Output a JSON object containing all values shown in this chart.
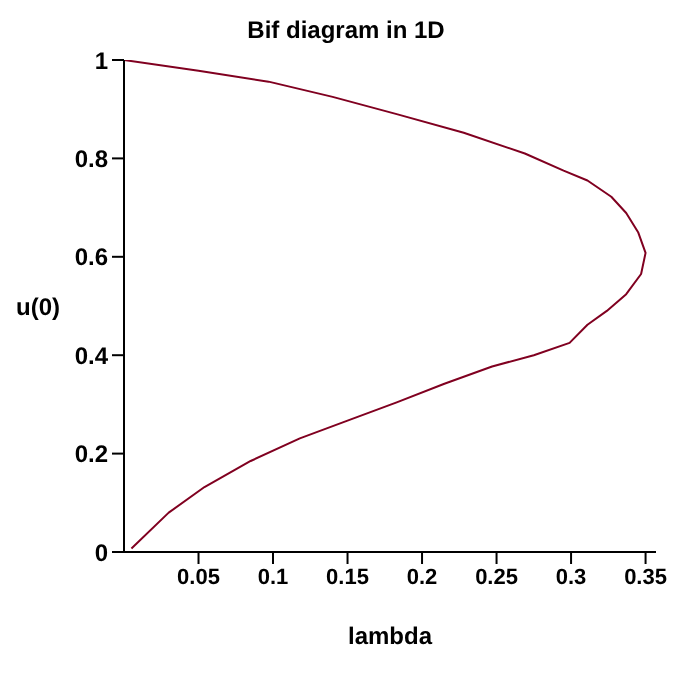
{
  "chart_data": {
    "type": "line",
    "title": "Bif diagram in 1D",
    "xlabel": "lambda",
    "ylabel": "u(0)",
    "x": [
      0,
      0.05,
      0.097,
      0.14,
      0.183,
      0.228,
      0.269,
      0.295,
      0.311,
      0.327,
      0.337,
      0.345,
      0.35,
      0.347,
      0.337,
      0.324,
      0.311,
      0.299,
      0.275,
      0.247,
      0.215,
      0.183,
      0.15,
      0.118,
      0.085,
      0.054,
      0.03,
      0.005
    ],
    "values": [
      1,
      0.978,
      0.956,
      0.925,
      0.89,
      0.852,
      0.81,
      0.775,
      0.755,
      0.722,
      0.689,
      0.65,
      0.608,
      0.565,
      0.524,
      0.49,
      0.462,
      0.425,
      0.4,
      0.377,
      0.342,
      0.304,
      0.267,
      0.231,
      0.185,
      0.132,
      0.08,
      0.007
    ],
    "color": "#800020",
    "xlim": [
      0,
      0.357
    ],
    "ylim": [
      0,
      1
    ],
    "xticks": [
      0.05,
      0.1,
      0.15,
      0.2,
      0.25,
      0.3,
      0.35
    ],
    "yticks": [
      0,
      0.2,
      0.4,
      0.6,
      0.8,
      1
    ],
    "grid": false,
    "legend": false,
    "marker": "none",
    "line_style": "solid"
  }
}
